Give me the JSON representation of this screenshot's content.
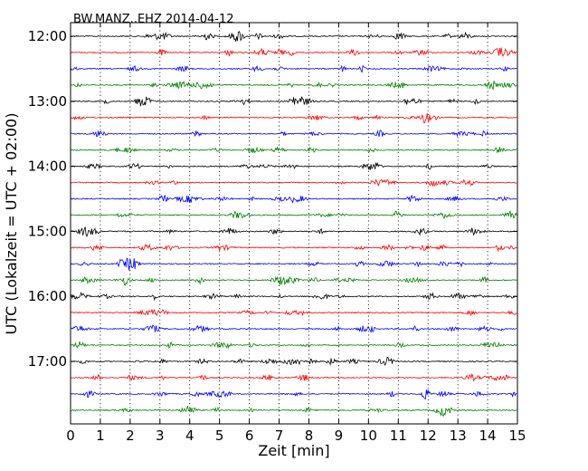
{
  "chart_data": {
    "type": "line",
    "title": "BW.MANZ..EHZ 2014-04-12",
    "xlabel": "Zeit  [min]",
    "ylabel": "UTC (Lokalzeit = UTC + 02:00)",
    "xlim": [
      0,
      15
    ],
    "x_ticks": [
      "0",
      "1",
      "2",
      "3",
      "4",
      "5",
      "6",
      "7",
      "8",
      "9",
      "10",
      "11",
      "12",
      "13",
      "14",
      "15"
    ],
    "y_ticks": [
      "12:00",
      "13:00",
      "14:00",
      "15:00",
      "16:00",
      "17:00"
    ],
    "trace_interval_minutes": 15,
    "trace_count": 24,
    "trace_colors": [
      "#000000",
      "#ff0000",
      "#0000ff",
      "#008000"
    ],
    "grid": "vertical dotted at each minute",
    "traces": [
      "12:00",
      "12:15",
      "12:30",
      "12:45",
      "13:00",
      "13:15",
      "13:30",
      "13:45",
      "14:00",
      "14:15",
      "14:30",
      "14:45",
      "15:00",
      "15:15",
      "15:30",
      "15:45",
      "16:00",
      "16:15",
      "16:30",
      "16:45",
      "17:00",
      "17:15",
      "17:30",
      "17:45"
    ]
  }
}
